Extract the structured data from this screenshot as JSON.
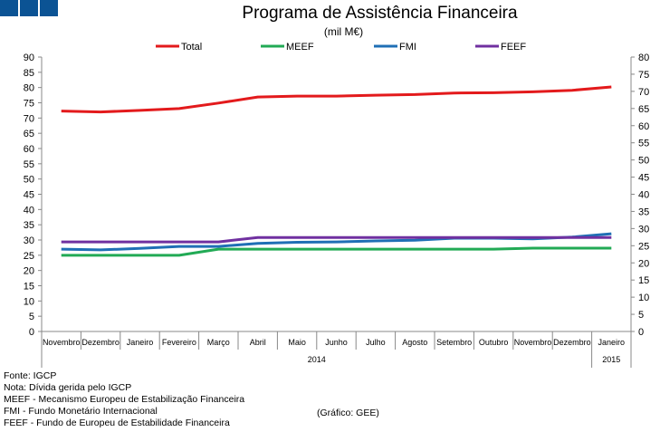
{
  "chart_data": {
    "type": "line",
    "title": "Programa de Assistência Financeira",
    "subtitle": "(mil M€)",
    "categories": [
      "Novembro",
      "Dezembro",
      "Janeiro",
      "Fevereiro",
      "Março",
      "Abril",
      "Maio",
      "Junho",
      "Julho",
      "Agosto",
      "Setembro",
      "Outubro",
      "Novembro",
      "Dezembro",
      "Janeiro"
    ],
    "year_groups": [
      {
        "label": "2014",
        "count": 14
      },
      {
        "label": "2015",
        "count": 1
      }
    ],
    "y_left": {
      "min": 0,
      "max": 90,
      "step": 5
    },
    "y_right": {
      "min": 0,
      "max": 80,
      "step": 5
    },
    "legend_position": "top",
    "grid": false,
    "series": [
      {
        "name": "Total",
        "axis": "left",
        "color": "#e31a1c",
        "values": [
          72.3,
          72.0,
          72.5,
          73.1,
          74.9,
          76.9,
          77.2,
          77.2,
          77.5,
          77.7,
          78.2,
          78.3,
          78.6,
          79.1,
          80.2
        ]
      },
      {
        "name": "MEEF",
        "axis": "right",
        "color": "#22aa55",
        "values": [
          22.2,
          22.2,
          22.2,
          22.2,
          24.0,
          24.0,
          24.0,
          24.0,
          24.0,
          24.0,
          24.0,
          24.0,
          24.3,
          24.3,
          24.3
        ]
      },
      {
        "name": "FMI",
        "axis": "right",
        "color": "#1f6fb5",
        "values": [
          24.0,
          23.8,
          24.2,
          24.8,
          24.8,
          25.7,
          26.0,
          26.1,
          26.4,
          26.6,
          27.2,
          27.2,
          27.0,
          27.5,
          28.5
        ]
      },
      {
        "name": "FEEF",
        "axis": "right",
        "color": "#7030a0",
        "values": [
          26.1,
          26.1,
          26.1,
          26.1,
          26.1,
          27.4,
          27.4,
          27.4,
          27.4,
          27.4,
          27.4,
          27.4,
          27.4,
          27.4,
          27.4
        ]
      }
    ]
  },
  "footnotes": [
    "Fonte: IGCP",
    "Nota: Dívida gerida pelo IGCP",
    "MEEF - Mecanismo Europeu de Estabilização Financeira",
    "FMI - Fundo Monetário Internacional",
    "FEEF - Fundo de Europeu de Estabilidade Financeira"
  ],
  "credit": "(Gráfico: GEE)",
  "colors": {
    "logo": "#0b5394"
  }
}
